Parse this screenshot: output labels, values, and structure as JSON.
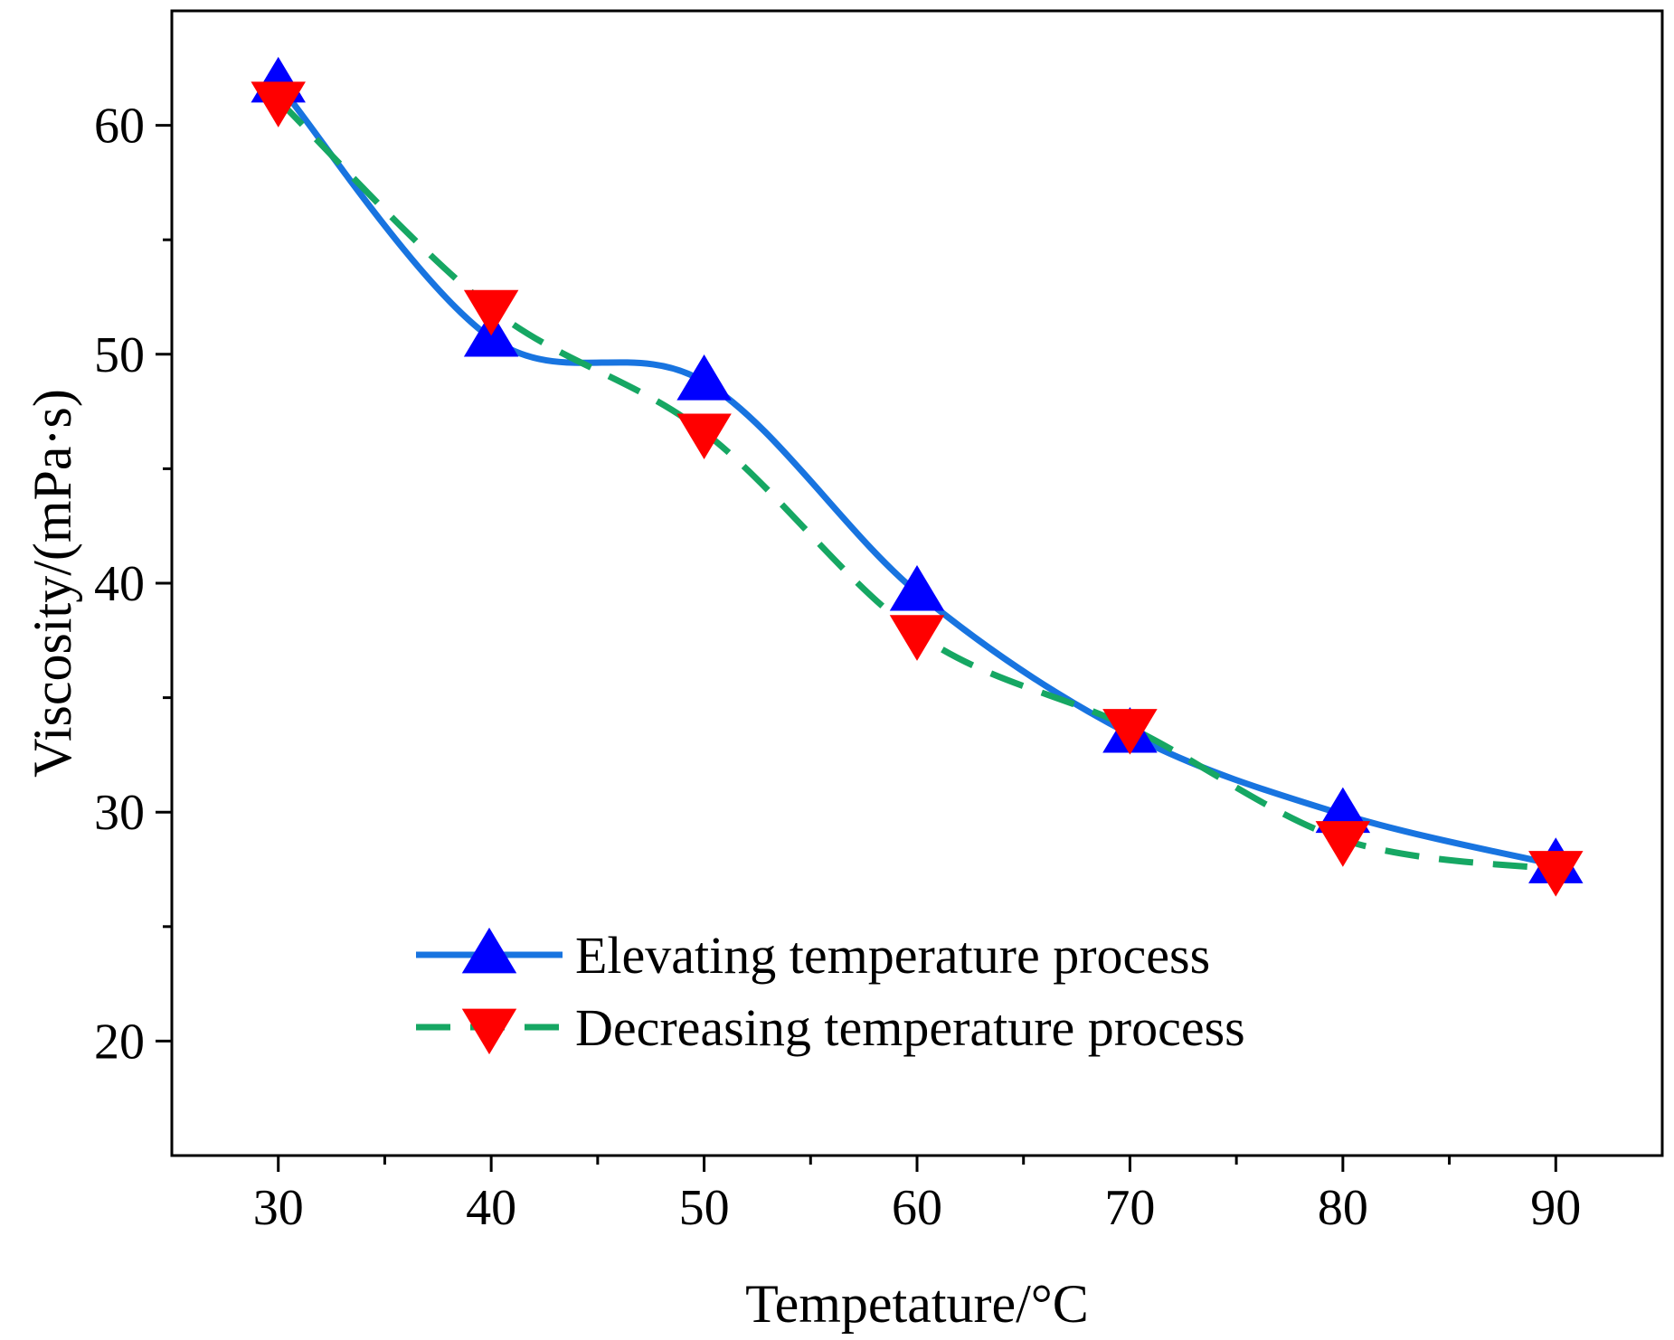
{
  "chart_data": {
    "type": "line",
    "title": "",
    "xlabel": "Tempetature/°C",
    "ylabel": "Viscosity/(mPa·s)",
    "xlim": [
      25,
      95
    ],
    "ylim": [
      15,
      65
    ],
    "xticks": [
      30,
      40,
      50,
      60,
      70,
      80,
      90
    ],
    "xtick_labels": [
      "30",
      "40",
      "50",
      "60",
      "70",
      "80",
      "90"
    ],
    "xminor": [
      35,
      45,
      55,
      65,
      75,
      85
    ],
    "yticks": [
      20,
      30,
      40,
      50,
      60
    ],
    "ytick_labels": [
      "20",
      "30",
      "40",
      "50",
      "60"
    ],
    "yminor": [
      25,
      35,
      45,
      55
    ],
    "grid": false,
    "legend_position": "lower-left",
    "x": [
      30,
      40,
      50,
      60,
      70,
      80,
      90
    ],
    "series": [
      {
        "name": "Elevating temperature process",
        "values": [
          61.8,
          50.7,
          48.8,
          39.6,
          33.4,
          29.9,
          27.7
        ],
        "color": "#1874e0",
        "line_style": "solid",
        "marker": "triangle-up",
        "marker_color": "#0000ff"
      },
      {
        "name": "Decreasing temperature process",
        "values": [
          61.1,
          52.0,
          46.6,
          37.8,
          33.7,
          28.8,
          27.5
        ],
        "color": "#16a763",
        "line_style": "dashed",
        "marker": "triangle-down",
        "marker_color": "#ff0000"
      }
    ]
  }
}
